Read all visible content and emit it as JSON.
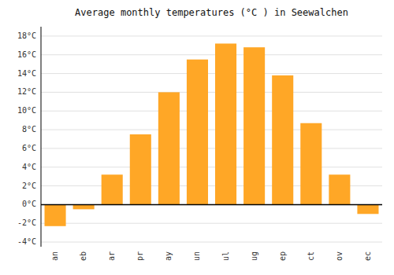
{
  "chart_data": {
    "type": "bar",
    "title": "Average monthly temperatures (°C ) in Seewalchen",
    "categories": [
      "an",
      "eb",
      "ar",
      "pr",
      "ay",
      "un",
      "ul",
      "ug",
      "ep",
      "ct",
      "ov",
      "ec"
    ],
    "values": [
      -2.3,
      -0.5,
      3.2,
      7.5,
      12.0,
      15.5,
      17.2,
      16.8,
      13.8,
      8.7,
      3.2,
      -1.0
    ],
    "color": "#FFA726",
    "ylim": [
      -4.5,
      19
    ],
    "yticks": [
      {
        "value": -4,
        "label": "-4°C"
      },
      {
        "value": -2,
        "label": "-2°C"
      },
      {
        "value": 0,
        "label": "0°C"
      },
      {
        "value": 2,
        "label": "2°C"
      },
      {
        "value": 4,
        "label": "4°C"
      },
      {
        "value": 6,
        "label": "6°C"
      },
      {
        "value": 8,
        "label": "8°C"
      },
      {
        "value": 10,
        "label": "10°C"
      },
      {
        "value": 12,
        "label": "12°C"
      },
      {
        "value": 14,
        "label": "14°C"
      },
      {
        "value": 16,
        "label": "16°C"
      },
      {
        "value": 18,
        "label": "18°C"
      }
    ],
    "grid": true
  }
}
